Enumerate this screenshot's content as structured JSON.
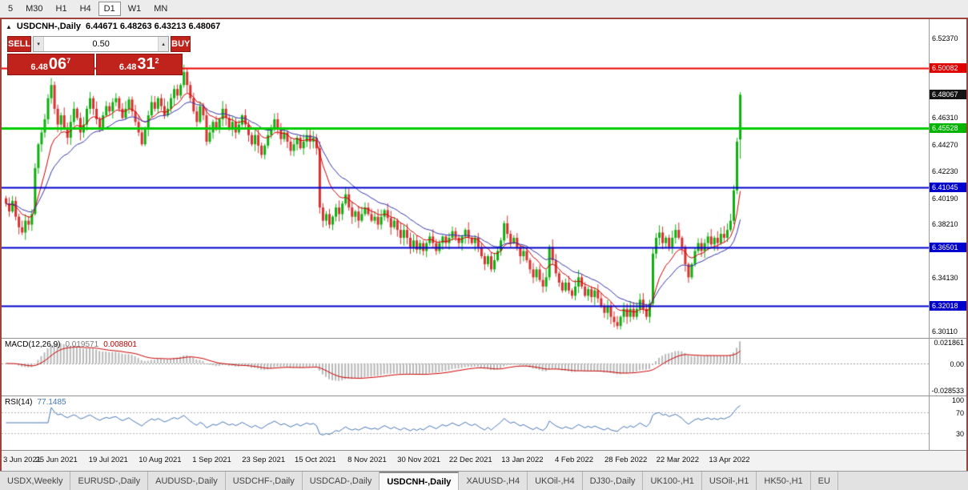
{
  "toolbar": {
    "timeframes": [
      "5",
      "M30",
      "H1",
      "H4",
      "D1",
      "W1",
      "MN"
    ],
    "active": "D1"
  },
  "chart": {
    "title": "USDCNH-,Daily",
    "ohlc": "6.44671 6.48263 6.43213 6.48067",
    "trade_panel": {
      "sell_label": "SELL",
      "buy_label": "BUY",
      "volume": "0.50",
      "sell_price": {
        "base": "6.48",
        "big": "06",
        "sup": "7"
      },
      "buy_price": {
        "base": "6.48",
        "big": "31",
        "sup": "2"
      }
    }
  },
  "chart_data": {
    "type": "candlestick",
    "symbol": "USDCNH-",
    "timeframe": "Daily",
    "last_bar": {
      "open": 6.44671,
      "high": 6.48263,
      "low": 6.43213,
      "close": 6.48067
    },
    "price_range": [
      6.296,
      6.538
    ],
    "up_color": "#0faf0f",
    "down_color": "#d93030",
    "ma_fast_period": 10,
    "ma_fast_color": "#d00000",
    "ma_slow_period": 21,
    "ma_slow_color": "#3333aa",
    "closes": [
      6.398,
      6.392,
      6.4,
      6.388,
      6.38,
      6.376,
      6.385,
      6.382,
      6.39,
      6.425,
      6.443,
      6.452,
      6.462,
      6.478,
      6.488,
      6.47,
      6.458,
      6.465,
      6.455,
      6.448,
      6.46,
      6.47,
      6.463,
      6.452,
      6.458,
      6.47,
      6.478,
      6.47,
      6.462,
      6.455,
      6.465,
      6.472,
      6.468,
      6.475,
      6.478,
      6.47,
      6.463,
      6.47,
      6.477,
      6.468,
      6.46,
      6.452,
      6.443,
      6.455,
      6.465,
      6.475,
      6.47,
      6.478,
      6.472,
      6.465,
      6.47,
      6.478,
      6.485,
      6.48,
      6.488,
      6.498,
      6.488,
      6.478,
      6.468,
      6.46,
      6.472,
      6.465,
      6.445,
      6.452,
      6.46,
      6.455,
      6.462,
      6.47,
      6.463,
      6.455,
      6.46,
      6.452,
      6.458,
      6.465,
      6.458,
      6.45,
      6.443,
      6.45,
      6.442,
      6.435,
      6.442,
      6.45,
      6.455,
      6.462,
      6.455,
      6.447,
      6.452,
      6.445,
      6.438,
      6.443,
      6.448,
      6.44,
      6.445,
      6.45,
      6.445,
      6.448,
      6.44,
      6.395,
      6.385,
      6.39,
      6.382,
      6.388,
      6.395,
      6.39,
      6.398,
      6.405,
      6.395,
      6.388,
      6.392,
      6.385,
      6.39,
      6.395,
      6.39,
      6.385,
      6.388,
      6.382,
      6.388,
      6.393,
      6.387,
      6.38,
      6.385,
      6.378,
      6.372,
      6.378,
      6.372,
      6.365,
      6.37,
      6.363,
      6.368,
      6.362,
      6.368,
      6.373,
      6.368,
      6.362,
      6.368,
      6.373,
      6.368,
      6.372,
      6.377,
      6.372,
      6.368,
      6.373,
      6.378,
      6.372,
      6.368,
      6.372,
      6.365,
      6.358,
      6.352,
      6.358,
      6.348,
      6.355,
      6.362,
      6.37,
      6.383,
      6.375,
      6.368,
      6.372,
      6.365,
      6.358,
      6.362,
      6.355,
      6.348,
      6.342,
      6.348,
      6.34,
      6.335,
      6.342,
      6.365,
      6.355,
      6.345,
      6.338,
      6.332,
      6.338,
      6.332,
      6.328,
      6.335,
      6.342,
      6.335,
      6.328,
      6.333,
      6.327,
      6.332,
      6.326,
      6.32,
      6.315,
      6.32,
      6.312,
      6.308,
      6.305,
      6.312,
      6.318,
      6.312,
      6.318,
      6.312,
      6.318,
      6.325,
      6.318,
      6.312,
      6.322,
      6.36,
      6.372,
      6.376,
      6.368,
      6.372,
      6.365,
      6.372,
      6.378,
      6.372,
      6.365,
      6.352,
      6.342,
      6.352,
      6.362,
      6.368,
      6.362,
      6.368,
      6.373,
      6.367,
      6.372,
      6.368,
      6.375,
      6.372,
      6.378,
      6.385,
      6.408,
      6.445,
      6.48067
    ],
    "hlines": [
      {
        "price": 6.50082,
        "color": "#ee0000",
        "width": 2
      },
      {
        "price": 6.45528,
        "color": "#00cc00",
        "width": 3
      },
      {
        "price": 6.41045,
        "color": "#0000cc",
        "width": 2
      },
      {
        "price": 6.36501,
        "color": "#0000cc",
        "width": 2
      },
      {
        "price": 6.32018,
        "color": "#0000cc",
        "width": 2
      }
    ],
    "macd": {
      "fast": 12,
      "slow": 26,
      "signal": 9,
      "range": [
        -0.031,
        0.0245
      ],
      "hist_color": "#b8b8b8",
      "signal_color": "#cc0000"
    },
    "rsi": {
      "period": 14,
      "range": [
        0,
        100
      ],
      "levels": [
        70,
        30
      ],
      "color": "#4876b8"
    }
  },
  "price_axis": {
    "ticks": [
      {
        "label": "6.52370",
        "price": 6.5237,
        "style": "plain"
      },
      {
        "label": "6.50082",
        "price": 6.50082,
        "style": "tag",
        "bg": "#e00000"
      },
      {
        "label": "6.48067",
        "price": 6.48067,
        "style": "tag",
        "bg": "#141414"
      },
      {
        "label": "6.46310",
        "price": 6.4631,
        "style": "plain"
      },
      {
        "label": "6.45528",
        "price": 6.45528,
        "style": "tag",
        "bg": "#00b400"
      },
      {
        "label": "6.44270",
        "price": 6.4427,
        "style": "plain"
      },
      {
        "label": "6.42230",
        "price": 6.4223,
        "style": "plain"
      },
      {
        "label": "6.41045",
        "price": 6.41045,
        "style": "tag",
        "bg": "#0000cd"
      },
      {
        "label": "6.40190",
        "price": 6.4019,
        "style": "plain"
      },
      {
        "label": "6.38210",
        "price": 6.3821,
        "style": "plain"
      },
      {
        "label": "6.36501",
        "price": 6.36501,
        "style": "tag",
        "bg": "#0000cd"
      },
      {
        "label": "6.34130",
        "price": 6.3413,
        "style": "plain"
      },
      {
        "label": "6.32018",
        "price": 6.32018,
        "style": "tag",
        "bg": "#0000cd"
      },
      {
        "label": "6.30110",
        "price": 6.3011,
        "style": "plain"
      }
    ]
  },
  "macd_panel": {
    "label": "MACD(12,26,9)",
    "value1": "0.019571",
    "value2": "0.008801",
    "axis": [
      "0.021861",
      "0.00",
      "-0.028533"
    ]
  },
  "rsi_panel": {
    "label": "RSI(14)",
    "value": "77.1485",
    "axis": [
      "100",
      "70",
      "30"
    ]
  },
  "date_axis": {
    "bars_per_label": 16,
    "labels": [
      "3 Jun 2021",
      "25 Jun 2021",
      "19 Jul 2021",
      "10 Aug 2021",
      "1 Sep 2021",
      "23 Sep 2021",
      "15 Oct 2021",
      "8 Nov 2021",
      "30 Nov 2021",
      "22 Dec 2021",
      "13 Jan 2022",
      "4 Feb 2022",
      "28 Feb 2022",
      "22 Mar 2022",
      "13 Apr 2022"
    ]
  },
  "tabs": {
    "active": "USDCNH-,Daily",
    "items": [
      "USDX,Weekly",
      "EURUSD-,Daily",
      "AUDUSD-,Daily",
      "USDCHF-,Daily",
      "USDCAD-,Daily",
      "USDCNH-,Daily",
      "XAUUSD-,H4",
      "UKOil-,H4",
      "DJ30-,Daily",
      "UK100-,H1",
      "USOil-,H1",
      "HK50-,H1",
      "EU"
    ]
  }
}
